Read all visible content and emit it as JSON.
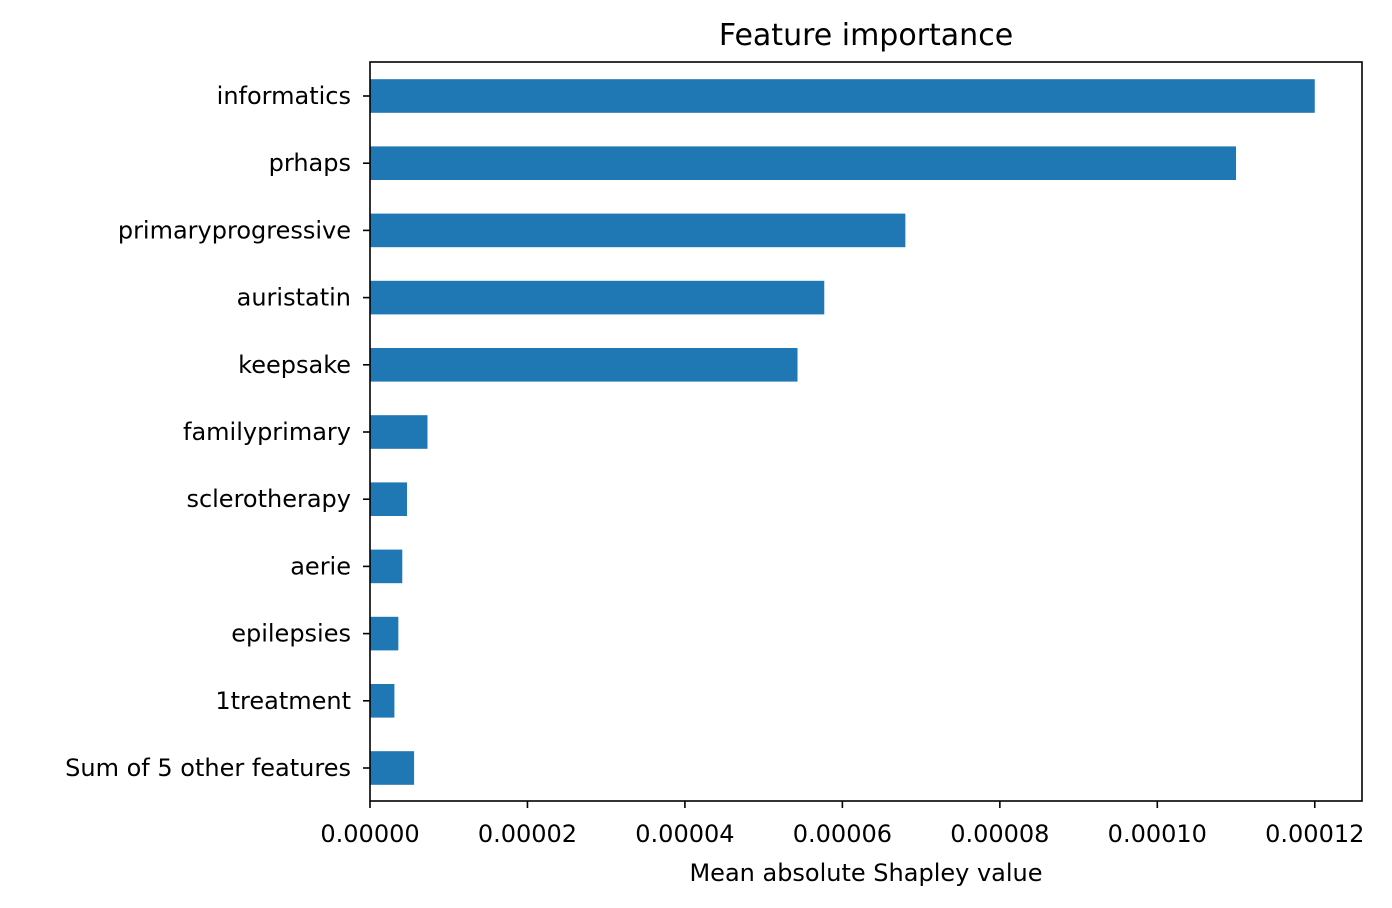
{
  "chart_data": {
    "type": "bar",
    "orientation": "horizontal",
    "title": "Feature importance",
    "xlabel": "Mean absolute Shapley value",
    "ylabel": "",
    "xlim": [
      0,
      0.000126
    ],
    "xticks": [
      0,
      2e-05,
      4e-05,
      6e-05,
      8e-05,
      0.0001,
      0.00012
    ],
    "xtick_labels": [
      "0.00000",
      "0.00002",
      "0.00004",
      "0.00006",
      "0.00008",
      "0.00010",
      "0.00012"
    ],
    "categories": [
      "informatics",
      "prhaps",
      "primaryprogressive",
      "auristatin",
      "keepsake",
      "familyprimary",
      "sclerotherapy",
      "aerie",
      "epilepsies",
      "1treatment",
      "Sum of 5 other features"
    ],
    "values": [
      0.00012,
      0.00011,
      6.8e-05,
      5.77e-05,
      5.43e-05,
      7.3e-06,
      4.7e-06,
      4.1e-06,
      3.6e-06,
      3.1e-06,
      5.6e-06
    ],
    "bar_color": "#1f77b4",
    "grid": false,
    "legend": "none"
  }
}
